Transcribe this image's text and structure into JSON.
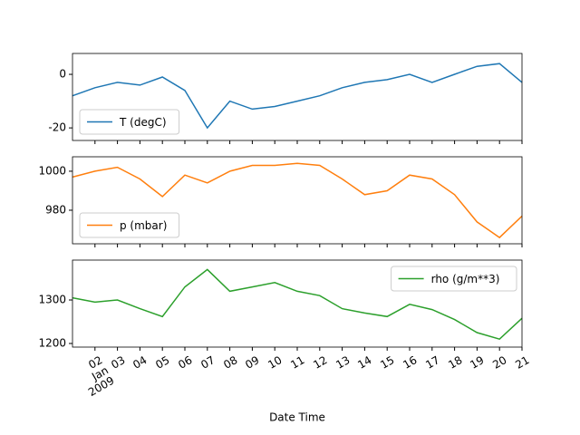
{
  "chart_data": [
    {
      "type": "line",
      "x": [
        "2009-01-01",
        "2009-01-02",
        "2009-01-03",
        "2009-01-04",
        "2009-01-05",
        "2009-01-06",
        "2009-01-07",
        "2009-01-08",
        "2009-01-09",
        "2009-01-10",
        "2009-01-11",
        "2009-01-12",
        "2009-01-13",
        "2009-01-14",
        "2009-01-15",
        "2009-01-16",
        "2009-01-17",
        "2009-01-18",
        "2009-01-19",
        "2009-01-20",
        "2009-01-21"
      ],
      "xlim": [
        "2009-01-01",
        "2009-01-21"
      ],
      "series": [
        {
          "name": "T (degC)",
          "color": "#1f77b4",
          "values": [
            -8,
            -5,
            -3,
            -4,
            -1,
            -6,
            -20,
            -10,
            -13,
            -12,
            -10,
            -8,
            -5,
            -3,
            -2,
            0,
            -3,
            0,
            3,
            4,
            -3
          ]
        }
      ],
      "ylim": [
        -24.7,
        7.8
      ],
      "yticks": [
        -20,
        0
      ],
      "legend": "lower left"
    },
    {
      "type": "line",
      "x": [
        "2009-01-01",
        "2009-01-02",
        "2009-01-03",
        "2009-01-04",
        "2009-01-05",
        "2009-01-06",
        "2009-01-07",
        "2009-01-08",
        "2009-01-09",
        "2009-01-10",
        "2009-01-11",
        "2009-01-12",
        "2009-01-13",
        "2009-01-14",
        "2009-01-15",
        "2009-01-16",
        "2009-01-17",
        "2009-01-18",
        "2009-01-19",
        "2009-01-20",
        "2009-01-21"
      ],
      "xlim": [
        "2009-01-01",
        "2009-01-21"
      ],
      "series": [
        {
          "name": "p (mbar)",
          "color": "#ff7f0e",
          "values": [
            997,
            1000,
            1002,
            996,
            987,
            998,
            994,
            1000,
            1003,
            1003,
            1004,
            1003,
            996,
            988,
            990,
            998,
            996,
            988,
            974,
            966,
            977
          ]
        }
      ],
      "ylim": [
        962.8,
        1007.4
      ],
      "yticks": [
        980,
        1000
      ],
      "legend": "lower left"
    },
    {
      "type": "line",
      "x": [
        "2009-01-01",
        "2009-01-02",
        "2009-01-03",
        "2009-01-04",
        "2009-01-05",
        "2009-01-06",
        "2009-01-07",
        "2009-01-08",
        "2009-01-09",
        "2009-01-10",
        "2009-01-11",
        "2009-01-12",
        "2009-01-13",
        "2009-01-14",
        "2009-01-15",
        "2009-01-16",
        "2009-01-17",
        "2009-01-18",
        "2009-01-19",
        "2009-01-20",
        "2009-01-21"
      ],
      "xlim": [
        "2009-01-01",
        "2009-01-21"
      ],
      "series": [
        {
          "name": "rho (g/m**3)",
          "color": "#2ca02c",
          "values": [
            1305,
            1295,
            1300,
            1280,
            1262,
            1330,
            1370,
            1320,
            1330,
            1340,
            1320,
            1310,
            1280,
            1270,
            1262,
            1290,
            1278,
            1255,
            1225,
            1210,
            1258
          ]
        }
      ],
      "ylim": [
        1191.7,
        1391.7
      ],
      "yticks": [
        1200,
        1300
      ],
      "legend": "upper right",
      "xlabel": "Date Time",
      "xticks": [
        {
          "value": "2009-01-02",
          "label": "02\nJan\n2009"
        },
        {
          "value": "2009-01-03",
          "label": "03"
        },
        {
          "value": "2009-01-04",
          "label": "04"
        },
        {
          "value": "2009-01-05",
          "label": "05"
        },
        {
          "value": "2009-01-06",
          "label": "06"
        },
        {
          "value": "2009-01-07",
          "label": "07"
        },
        {
          "value": "2009-01-08",
          "label": "08"
        },
        {
          "value": "2009-01-09",
          "label": "09"
        },
        {
          "value": "2009-01-10",
          "label": "10"
        },
        {
          "value": "2009-01-11",
          "label": "11"
        },
        {
          "value": "2009-01-12",
          "label": "12"
        },
        {
          "value": "2009-01-13",
          "label": "13"
        },
        {
          "value": "2009-01-14",
          "label": "14"
        },
        {
          "value": "2009-01-15",
          "label": "15"
        },
        {
          "value": "2009-01-16",
          "label": "16"
        },
        {
          "value": "2009-01-17",
          "label": "17"
        },
        {
          "value": "2009-01-18",
          "label": "18"
        },
        {
          "value": "2009-01-19",
          "label": "19"
        },
        {
          "value": "2009-01-20",
          "label": "20"
        },
        {
          "value": "2009-01-21",
          "label": "21"
        }
      ]
    }
  ]
}
